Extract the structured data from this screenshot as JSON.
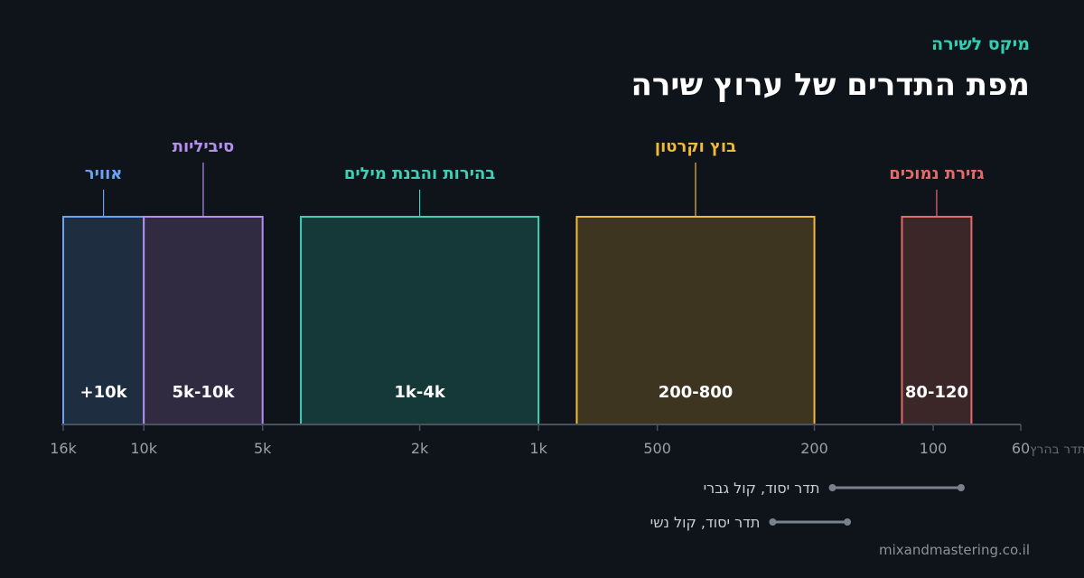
{
  "header": {
    "eyebrow": "מיקס לשירה",
    "title": "מפת התדרים של ערוץ שירה"
  },
  "footer": {
    "site": "mixandmastering.co.il"
  },
  "chart_data": {
    "type": "bar",
    "title": "מפת התדרים של ערוץ שירה",
    "x_scale": "log",
    "x_direction": "reversed (high frequencies on the left)",
    "xlabel": "תדר בהרץ",
    "x_range": [
      60,
      16000
    ],
    "ticks": [
      {
        "value": 16000,
        "label": "16k"
      },
      {
        "value": 10000,
        "label": "10k"
      },
      {
        "value": 5000,
        "label": "5k"
      },
      {
        "value": 2000,
        "label": "2k"
      },
      {
        "value": 1000,
        "label": "1k"
      },
      {
        "value": 500,
        "label": "500"
      },
      {
        "value": 200,
        "label": "200"
      },
      {
        "value": 100,
        "label": "100"
      },
      {
        "value": 60,
        "label": "60"
      }
    ],
    "bands": [
      {
        "name": "אוויר",
        "range_label": "+10k",
        "from": 10000,
        "to": 16000,
        "color": "#6aa2f4",
        "fill": "#1e2d40",
        "label_row": 2
      },
      {
        "name": "סיביליות",
        "range_label": "5k-10k",
        "from": 5000,
        "to": 10000,
        "color": "#b48ef0",
        "fill": "#312b42",
        "label_row": 1
      },
      {
        "name": "בהירות והבנת מילים",
        "range_label": "1k-4k",
        "from": 1000,
        "to": 4000,
        "color": "#3ecfb5",
        "fill": "#153838",
        "label_row": 2
      },
      {
        "name": "בוץ וקרטון",
        "range_label": "200-800",
        "from": 200,
        "to": 800,
        "color": "#f0b93a",
        "fill": "#3d3520",
        "label_row": 1
      },
      {
        "name": "גזירת נמוכים",
        "range_label": "80-120",
        "from": 80,
        "to": 120,
        "color": "#e56b6b",
        "fill": "#3b2628",
        "label_row": 2
      }
    ],
    "fundamentals": [
      {
        "label": "תדר יסוד, קול גברי",
        "from": 85,
        "to": 180
      },
      {
        "label": "תדר יסוד, קול נשי",
        "from": 165,
        "to": 255
      }
    ],
    "colors": {
      "axis": "#4a5260",
      "tick_label": "#9aa1ab",
      "range_line": "#7a828e",
      "range_label": "#c9ced6"
    }
  }
}
